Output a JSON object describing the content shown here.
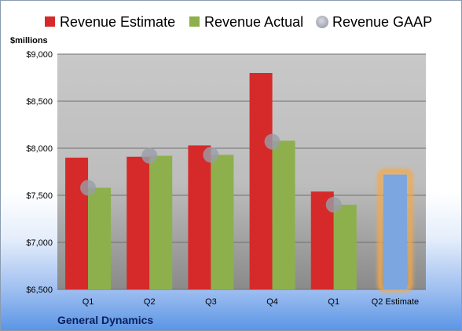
{
  "chart_data": {
    "type": "bar",
    "company": "General Dynamics",
    "ylabel": "$millions",
    "ylim": [
      6500,
      9000
    ],
    "yticks": [
      "$6,500",
      "$7,000",
      "$7,500",
      "$8,000",
      "$8,500",
      "$9,000"
    ],
    "ytick_values": [
      6500,
      7000,
      7500,
      8000,
      8500,
      9000
    ],
    "categories": [
      "Q1",
      "Q2",
      "Q3",
      "Q4",
      "Q1",
      "Q2 Estimate"
    ],
    "legend_position": "top",
    "grid": true,
    "series": [
      {
        "name": "Revenue Estimate",
        "color": "#d62a2a",
        "values": [
          7900,
          7910,
          8030,
          8800,
          7540,
          null
        ]
      },
      {
        "name": "Revenue Actual",
        "color": "#8db04c",
        "values": [
          7580,
          7920,
          7930,
          8080,
          7400,
          null
        ]
      },
      {
        "name": "Revenue GAAP",
        "color": "#b8bcc8",
        "values": [
          7580,
          7920,
          7930,
          8070,
          7400,
          null
        ]
      }
    ],
    "estimate": {
      "category_index": 5,
      "value": 7720,
      "color": "#7ba6e0",
      "highlight": "#f4a94a"
    }
  }
}
